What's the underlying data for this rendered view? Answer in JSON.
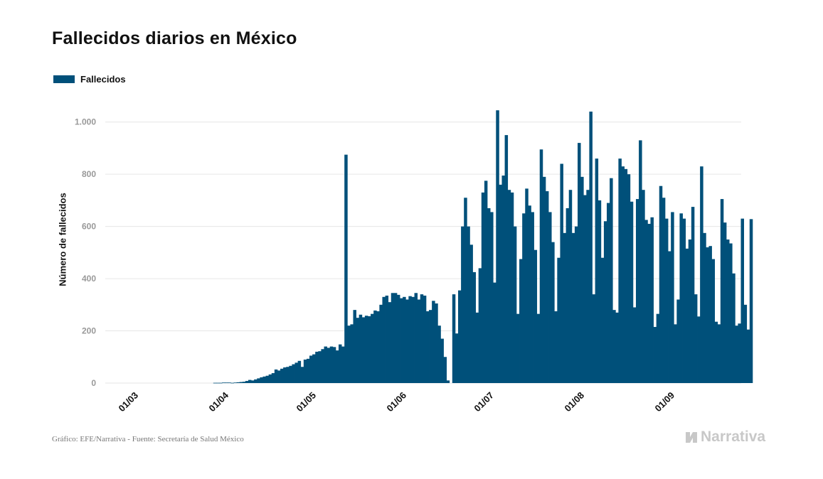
{
  "title": "Fallecidos diarios en México",
  "source": "Gráfico: EFE/Narrativa - Fuente: Secretaría de Salud México",
  "brand": "Narrativa",
  "colors": {
    "bar": "#00507a",
    "grid": "#e6e6e6",
    "axis_text": "#999999"
  },
  "chart_data": {
    "type": "bar",
    "title": "Fallecidos diarios en México",
    "xlabel": "",
    "ylabel": "Número de fallecidos",
    "ylim": [
      0,
      1100
    ],
    "yticks": [
      0,
      200,
      400,
      600,
      800,
      1000
    ],
    "ytick_labels": [
      "0",
      "200",
      "400",
      "600",
      "800",
      "1.000"
    ],
    "xticks": [
      "2020-03-01",
      "2020-04-01",
      "2020-05-01",
      "2020-06-01",
      "2020-07-01",
      "2020-08-01",
      "2020-09-01"
    ],
    "xtick_labels": [
      "01/03",
      "01/04",
      "01/05",
      "01/06",
      "01/07",
      "01/08",
      "01/09"
    ],
    "grid": true,
    "legend_position": "top-left",
    "series": [
      {
        "name": "Fallecidos",
        "start_date": "2020-03-01",
        "values": [
          0,
          0,
          0,
          0,
          0,
          0,
          0,
          0,
          0,
          0,
          0,
          0,
          0,
          0,
          0,
          0,
          0,
          0,
          0,
          0,
          0,
          0,
          0,
          0,
          0,
          0,
          0,
          0,
          0,
          1,
          1,
          1,
          2,
          2,
          2,
          1,
          2,
          3,
          4,
          5,
          8,
          12,
          10,
          14,
          18,
          22,
          25,
          28,
          33,
          38,
          52,
          48,
          55,
          60,
          62,
          66,
          72,
          78,
          85,
          62,
          90,
          93,
          105,
          110,
          120,
          122,
          130,
          140,
          135,
          140,
          138,
          125,
          148,
          140,
          875,
          220,
          225,
          280,
          250,
          262,
          252,
          258,
          256,
          265,
          278,
          275,
          300,
          330,
          335,
          310,
          345,
          345,
          338,
          325,
          330,
          320,
          333,
          330,
          345,
          320,
          340,
          335,
          275,
          280,
          315,
          305,
          220,
          170,
          100,
          10,
          0,
          340,
          190,
          355,
          600,
          710,
          600,
          530,
          425,
          270,
          440,
          730,
          775,
          670,
          655,
          385,
          1045,
          760,
          795,
          950,
          740,
          730,
          600,
          265,
          475,
          650,
          745,
          680,
          655,
          510,
          265,
          895,
          790,
          735,
          655,
          540,
          275,
          480,
          840,
          575,
          670,
          740,
          575,
          600,
          920,
          790,
          720,
          740,
          1040,
          340,
          860,
          700,
          480,
          620,
          690,
          785,
          280,
          270,
          860,
          830,
          820,
          800,
          695,
          290,
          705,
          930,
          740,
          625,
          610,
          635,
          215,
          265,
          755,
          710,
          630,
          505,
          655,
          225,
          320,
          650,
          630,
          515,
          550,
          675,
          340,
          255,
          830,
          575,
          520,
          525,
          475,
          235,
          225,
          705,
          615,
          550,
          535,
          420,
          220,
          228,
          630,
          300,
          205,
          628
        ]
      }
    ]
  }
}
